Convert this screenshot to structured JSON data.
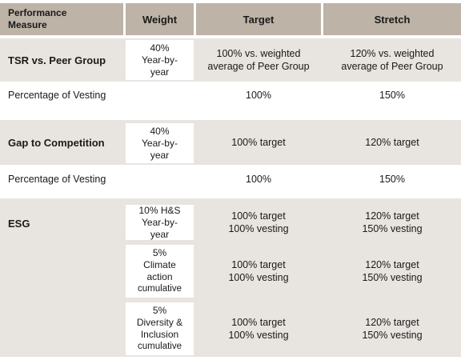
{
  "header": {
    "col1_line1": "Performance",
    "col1_line2": "Measure",
    "col2": "Weight",
    "col3": "Target",
    "col4": "Stretch"
  },
  "tsr": {
    "measure": "TSR vs. Peer Group",
    "weight_line1": "40%",
    "weight_line2": "Year-by-",
    "weight_line3": "year",
    "target_line1": "100% vs. weighted",
    "target_line2": "average of Peer Group",
    "stretch_line1": "120% vs. weighted",
    "stretch_line2": "average of Peer Group"
  },
  "tsr_vesting": {
    "measure": "Percentage of Vesting",
    "target": "100%",
    "stretch": "150%"
  },
  "gap": {
    "measure": "Gap to Competition",
    "weight_line1": "40%",
    "weight_line2": "Year-by-",
    "weight_line3": "year",
    "target": "100% target",
    "stretch": "120% target"
  },
  "gap_vesting": {
    "measure": "Percentage of Vesting",
    "target": "100%",
    "stretch": "150%"
  },
  "esg": {
    "measure": "ESG",
    "rows": [
      {
        "weight_lines": [
          "10% H&S",
          "Year-by-",
          "year"
        ],
        "target_line1": "100% target",
        "target_line2": "100% vesting",
        "stretch_line1": "120% target",
        "stretch_line2": "150% vesting"
      },
      {
        "weight_lines": [
          "5%",
          "Climate",
          "action",
          "cumulative"
        ],
        "target_line1": "100% target",
        "target_line2": "100% vesting",
        "stretch_line1": "120% target",
        "stretch_line2": "150% vesting"
      },
      {
        "weight_lines": [
          "5%",
          "Diversity &",
          "Inclusion",
          "cumulative"
        ],
        "target_line1": "100% target",
        "target_line2": "100% vesting",
        "stretch_line1": "120% target",
        "stretch_line2": "150% vesting"
      }
    ]
  }
}
